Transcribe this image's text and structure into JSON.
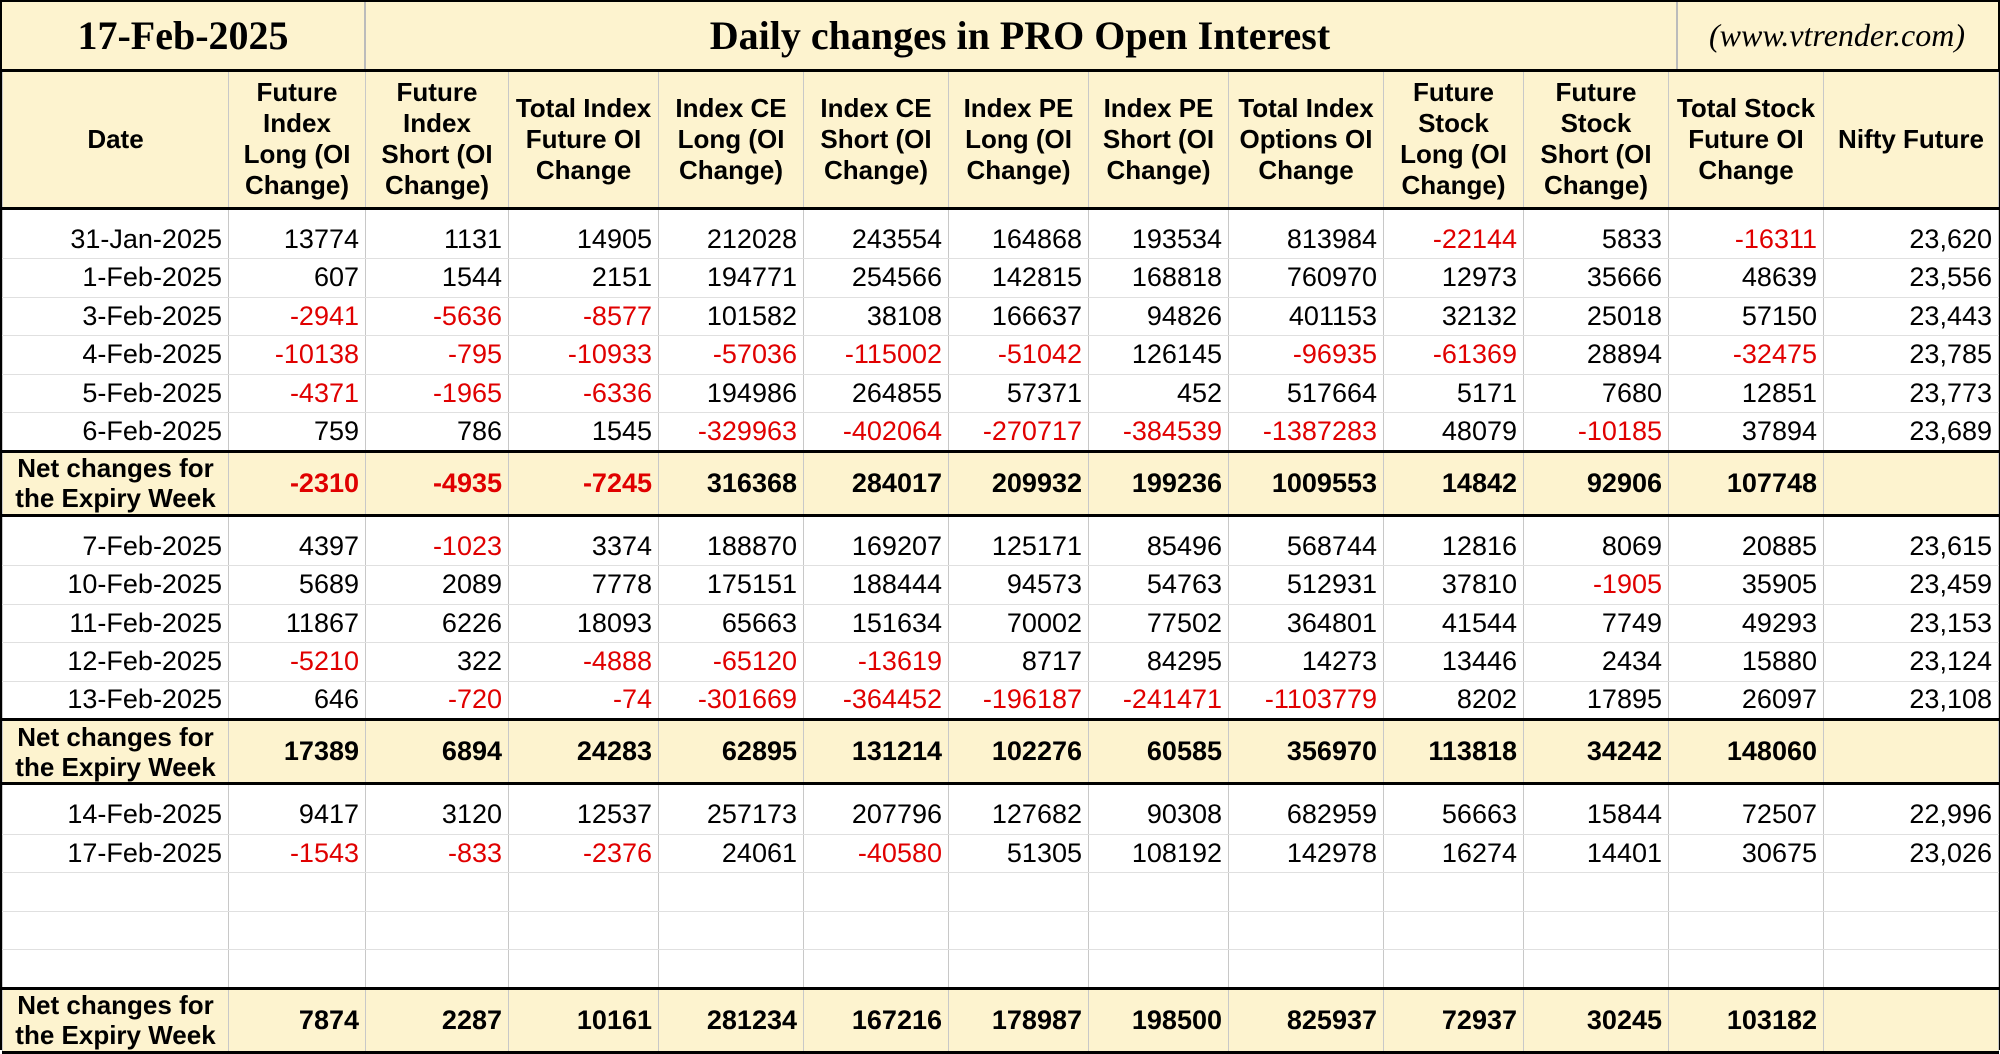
{
  "header": {
    "date": "17-Feb-2025",
    "title": "Daily changes in PRO Open Interest",
    "website": "(www.vtrender.com)"
  },
  "columns": [
    "Date",
    "Future Index Long (OI Change)",
    "Future Index Short (OI Change)",
    "Total Index Future OI Change",
    "Index CE Long (OI Change)",
    "Index CE Short (OI Change)",
    "Index PE Long (OI Change)",
    "Index PE Short (OI Change)",
    "Total Index Options OI Change",
    "Future Stock Long (OI Change)",
    "Future Stock Short (OI Change)",
    "Total Stock Future OI Change",
    "Nifty Future"
  ],
  "net_label": "Net changes for the Expiry Week",
  "colors": {
    "header_bg": "#fdf3cf",
    "negative": "#e00000"
  },
  "weeks": [
    {
      "rows": [
        [
          "31-Jan-2025",
          "13774",
          "1131",
          "14905",
          "212028",
          "243554",
          "164868",
          "193534",
          "813984",
          "-22144",
          "5833",
          "-16311",
          "23,620"
        ],
        [
          "1-Feb-2025",
          "607",
          "1544",
          "2151",
          "194771",
          "254566",
          "142815",
          "168818",
          "760970",
          "12973",
          "35666",
          "48639",
          "23,556"
        ],
        [
          "3-Feb-2025",
          "-2941",
          "-5636",
          "-8577",
          "101582",
          "38108",
          "166637",
          "94826",
          "401153",
          "32132",
          "25018",
          "57150",
          "23,443"
        ],
        [
          "4-Feb-2025",
          "-10138",
          "-795",
          "-10933",
          "-57036",
          "-115002",
          "-51042",
          "126145",
          "-96935",
          "-61369",
          "28894",
          "-32475",
          "23,785"
        ],
        [
          "5-Feb-2025",
          "-4371",
          "-1965",
          "-6336",
          "194986",
          "264855",
          "57371",
          "452",
          "517664",
          "5171",
          "7680",
          "12851",
          "23,773"
        ],
        [
          "6-Feb-2025",
          "759",
          "786",
          "1545",
          "-329963",
          "-402064",
          "-270717",
          "-384539",
          "-1387283",
          "48079",
          "-10185",
          "37894",
          "23,689"
        ]
      ],
      "net": [
        "-2310",
        "-4935",
        "-7245",
        "316368",
        "284017",
        "209932",
        "199236",
        "1009553",
        "14842",
        "92906",
        "107748",
        ""
      ]
    },
    {
      "rows": [
        [
          "7-Feb-2025",
          "4397",
          "-1023",
          "3374",
          "188870",
          "169207",
          "125171",
          "85496",
          "568744",
          "12816",
          "8069",
          "20885",
          "23,615"
        ],
        [
          "10-Feb-2025",
          "5689",
          "2089",
          "7778",
          "175151",
          "188444",
          "94573",
          "54763",
          "512931",
          "37810",
          "-1905",
          "35905",
          "23,459"
        ],
        [
          "11-Feb-2025",
          "11867",
          "6226",
          "18093",
          "65663",
          "151634",
          "70002",
          "77502",
          "364801",
          "41544",
          "7749",
          "49293",
          "23,153"
        ],
        [
          "12-Feb-2025",
          "-5210",
          "322",
          "-4888",
          "-65120",
          "-13619",
          "8717",
          "84295",
          "14273",
          "13446",
          "2434",
          "15880",
          "23,124"
        ],
        [
          "13-Feb-2025",
          "646",
          "-720",
          "-74",
          "-301669",
          "-364452",
          "-196187",
          "-241471",
          "-1103779",
          "8202",
          "17895",
          "26097",
          "23,108"
        ]
      ],
      "net": [
        "17389",
        "6894",
        "24283",
        "62895",
        "131214",
        "102276",
        "60585",
        "356970",
        "113818",
        "34242",
        "148060",
        ""
      ]
    },
    {
      "rows": [
        [
          "14-Feb-2025",
          "9417",
          "3120",
          "12537",
          "257173",
          "207796",
          "127682",
          "90308",
          "682959",
          "56663",
          "15844",
          "72507",
          "22,996"
        ],
        [
          "17-Feb-2025",
          "-1543",
          "-833",
          "-2376",
          "24061",
          "-40580",
          "51305",
          "108192",
          "142978",
          "16274",
          "14401",
          "30675",
          "23,026"
        ]
      ],
      "blank_rows": 3,
      "net": [
        "7874",
        "2287",
        "10161",
        "281234",
        "167216",
        "178987",
        "198500",
        "825937",
        "72937",
        "30245",
        "103182",
        ""
      ]
    }
  ]
}
